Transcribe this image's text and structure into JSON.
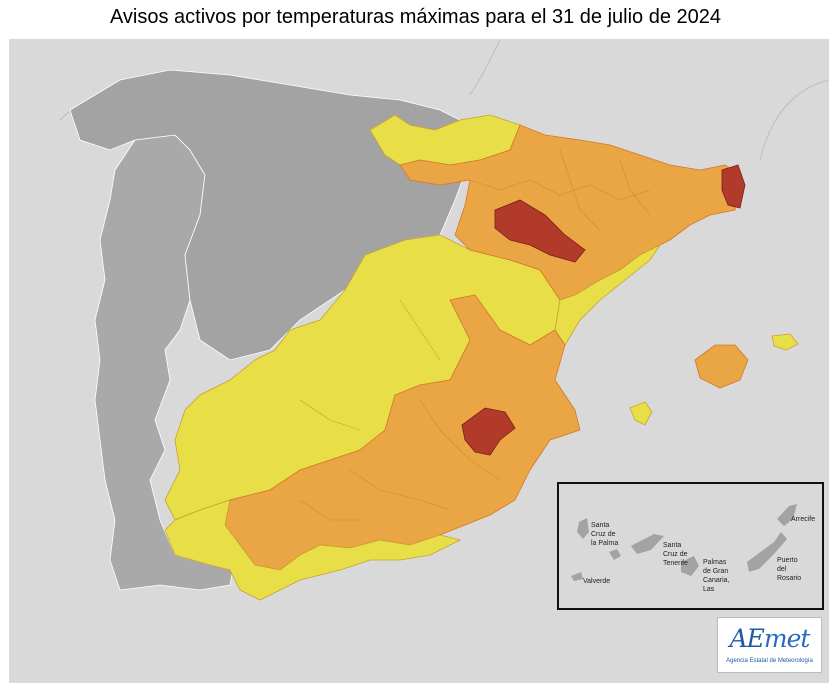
{
  "title": "Avisos activos por temperaturas máximas para el 31 de julio de 2024",
  "colors": {
    "sea": "#d9d9d9",
    "land_other": "#a9a9a9",
    "no_warning": "#a3a3a3",
    "yellow": "#e8df48",
    "orange": "#eaa544",
    "red": "#b13a2b",
    "border": "#ffffff"
  },
  "legend_levels": [
    "yellow",
    "orange",
    "red"
  ],
  "inset": {
    "labels": {
      "santa_cruz_palma": "Santa\nCruz de\nla Palma",
      "santa_cruz_tenerife": "Santa\nCruz de\nTenerife",
      "palmas": "Palmas\nde Gran\nCanaria,\nLas",
      "valverde": "Valverde",
      "arrecife": "Arrecife",
      "puerto_rosario": "Puerto\ndel\nRosario"
    }
  },
  "logo": {
    "text_ae": "AE",
    "text_met": "met",
    "subtitle": "Agencia Estatal de Meteorología"
  }
}
